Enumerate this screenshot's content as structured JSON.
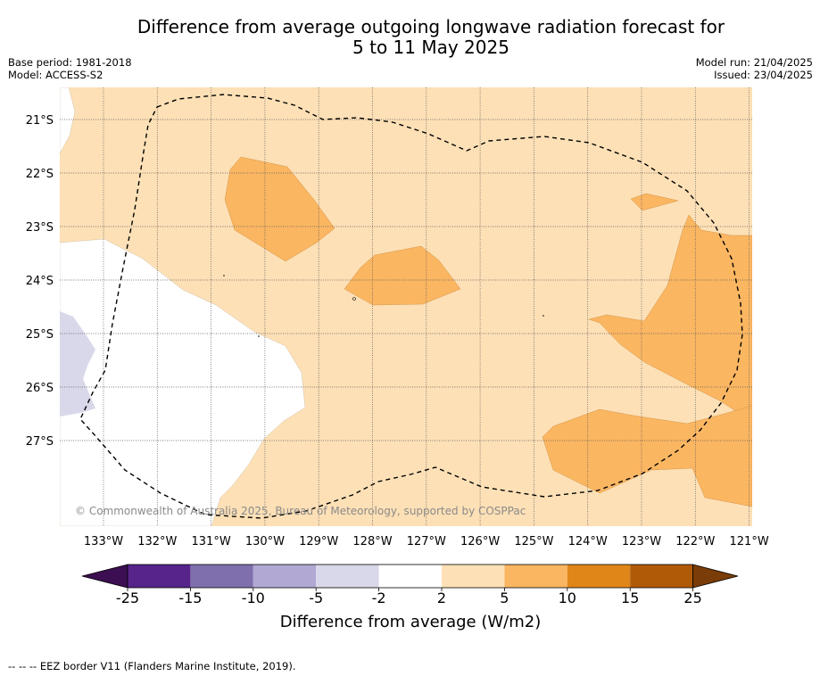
{
  "header": {
    "title_line1": "Difference from average outgoing longwave radiation forecast for",
    "title_line2": "5 to 11 May 2025",
    "base_period": "Base period: 1981-2018",
    "model": "Model: ACCESS-S2",
    "model_run": "Model run: 21/04/2025",
    "issued": "Issued: 23/04/2025"
  },
  "map": {
    "latitude_labels": [
      "21°S",
      "22°S",
      "23°S",
      "24°S",
      "25°S",
      "26°S",
      "27°S"
    ],
    "longitude_labels": [
      "133°W",
      "132°W",
      "131°W",
      "130°W",
      "129°W",
      "128°W",
      "127°W",
      "126°W",
      "125°W",
      "124°W",
      "123°W",
      "122°W",
      "121°W"
    ],
    "credit": "© Commonwealth of Australia 2025, Bureau of Meteorology, supported by COSPPac",
    "colors": {
      "light_purple": "#d8d8ea",
      "white": "#ffffff",
      "light_orange": "#fde0b6",
      "medium_orange": "#fbb662",
      "eez_line": "#000000"
    },
    "legend_line": "--  --  -- EEZ border V11 (Flanders Marine Institute, 2019)."
  },
  "colorbar": {
    "label": "Difference from average (W/m2)",
    "ticks": [
      "-25",
      "-15",
      "-10",
      "-5",
      "-2",
      "2",
      "5",
      "10",
      "15",
      "25"
    ],
    "colors": [
      "#3b0f52",
      "#56248a",
      "#7f6fac",
      "#b1a9d3",
      "#d8d8ea",
      "#ffffff",
      "#fde0b6",
      "#fbb662",
      "#e08618",
      "#b05a08",
      "#7a3c08"
    ]
  }
}
